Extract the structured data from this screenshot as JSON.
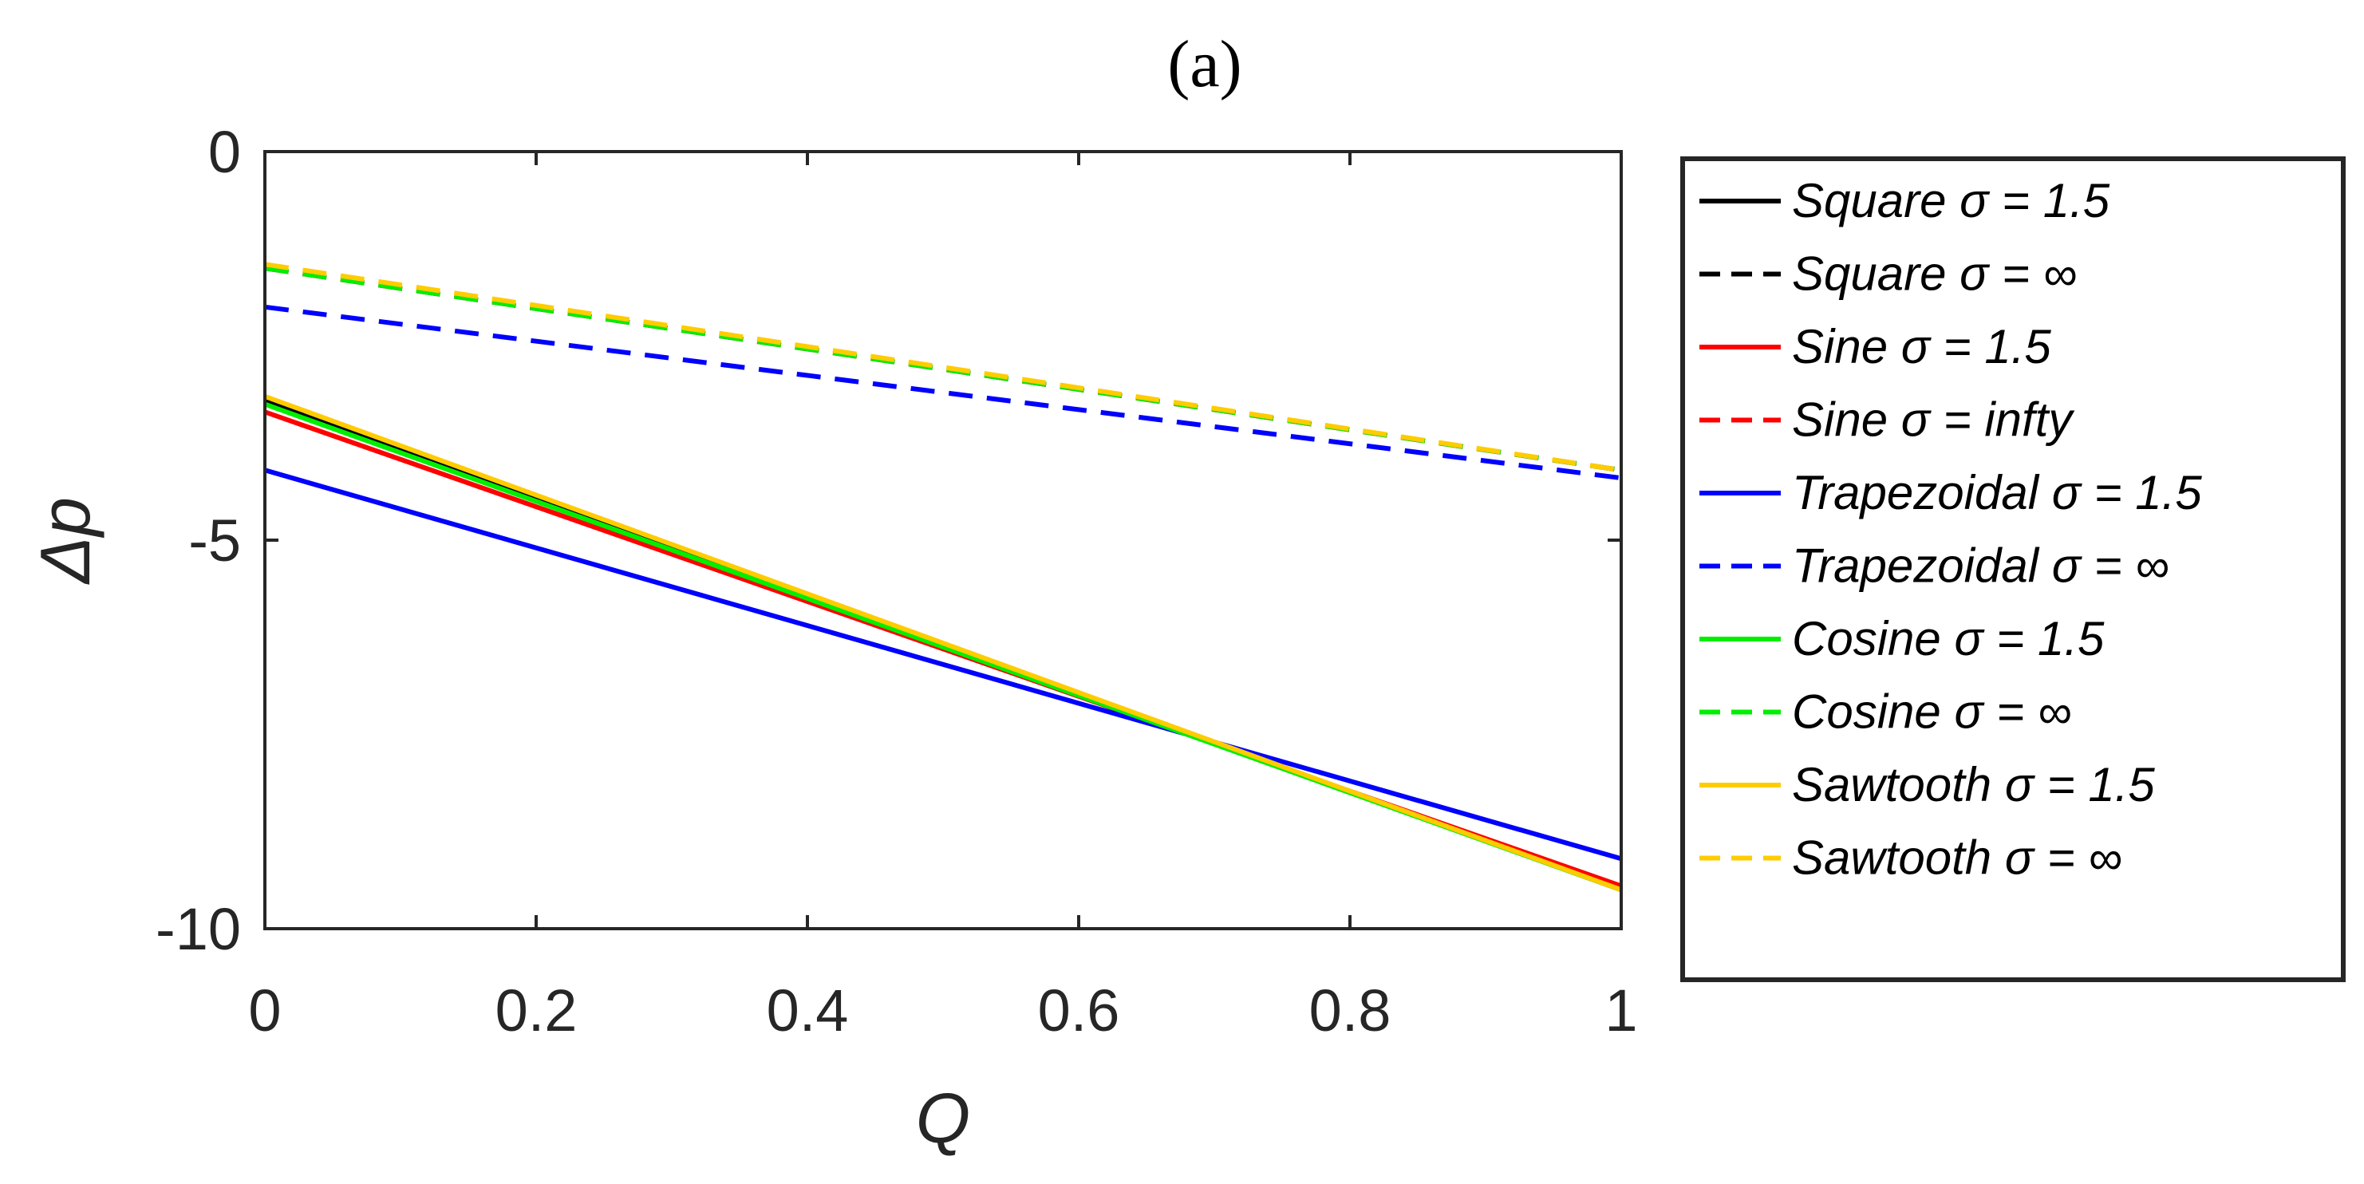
{
  "chart_data": {
    "type": "line",
    "title": "(a)",
    "xlabel": "Q",
    "ylabel": "Δp",
    "xlim": [
      0,
      1
    ],
    "ylim": [
      -10,
      0
    ],
    "xticks": [
      0,
      0.2,
      0.4,
      0.6,
      0.8,
      1
    ],
    "xtick_labels": [
      "0",
      "0.2",
      "0.4",
      "0.6",
      "0.8",
      "1"
    ],
    "yticks": [
      0,
      -5,
      -10
    ],
    "ytick_labels": [
      "0",
      "-5",
      "-10"
    ],
    "legend_position": "outside-right",
    "x": [
      0,
      1
    ],
    "series": [
      {
        "name": "Square σ = 1.5",
        "color": "#000000",
        "dash": "solid",
        "values": [
          -3.2,
          -9.5
        ]
      },
      {
        "name": "Square σ = ∞",
        "color": "#000000",
        "dash": "dashed",
        "values": [
          -1.5,
          -4.1
        ]
      },
      {
        "name": "Sine σ = 1.5",
        "color": "#ff0000",
        "dash": "solid",
        "values": [
          -3.35,
          -9.45
        ]
      },
      {
        "name": "Sine σ = infty",
        "color": "#ff0000",
        "dash": "dashed",
        "values": [
          -1.5,
          -4.1
        ]
      },
      {
        "name": "Trapezoidal σ = 1.5",
        "color": "#0000ff",
        "dash": "solid",
        "values": [
          -4.1,
          -9.1
        ]
      },
      {
        "name": "Trapezoidal σ = ∞",
        "color": "#0000ff",
        "dash": "dashed",
        "values": [
          -2.0,
          -4.2
        ]
      },
      {
        "name": "Cosine σ = 1.5",
        "color": "#00ee00",
        "dash": "solid",
        "values": [
          -3.25,
          -9.5
        ]
      },
      {
        "name": "Cosine σ = ∞",
        "color": "#00ee00",
        "dash": "dashed",
        "values": [
          -1.5,
          -4.1
        ]
      },
      {
        "name": "Sawtooth σ = 1.5",
        "color": "#ffcc00",
        "dash": "solid",
        "values": [
          -3.15,
          -9.5
        ]
      },
      {
        "name": "Sawtooth σ = ∞",
        "color": "#ffcc00",
        "dash": "dashed",
        "values": [
          -1.45,
          -4.1
        ]
      }
    ]
  }
}
